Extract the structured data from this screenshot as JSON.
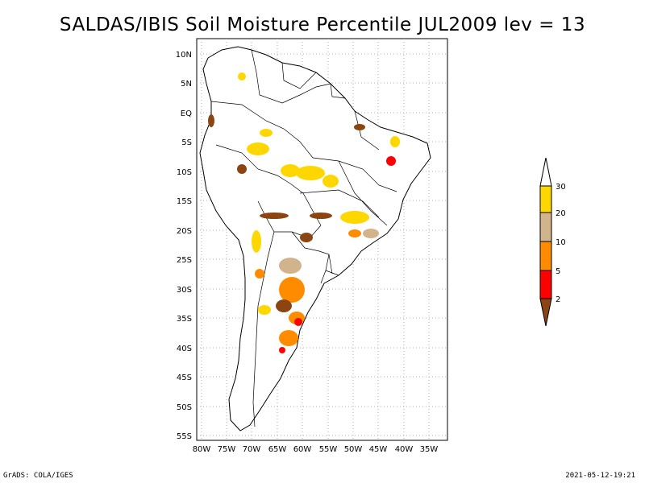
{
  "title": "SALDAS/IBIS Soil Moisture Percentile JUL2009 lev = 13",
  "footer_left": "GrADS: COLA/IGES",
  "footer_right": "2021-05-12-19:21",
  "map": {
    "lon_range": [
      -81,
      -31
    ],
    "lat_range": [
      -56,
      12
    ],
    "lon_ticks": [
      "80W",
      "75W",
      "70W",
      "65W",
      "60W",
      "55W",
      "50W",
      "45W",
      "40W",
      "35W"
    ],
    "lat_ticks": [
      "10N",
      "5N",
      "EQ",
      "5S",
      "10S",
      "15S",
      "20S",
      "25S",
      "30S",
      "35S",
      "40S",
      "45S",
      "50S",
      "55S"
    ],
    "grid": true
  },
  "legend": {
    "labels": [
      "2",
      "5",
      "10",
      "20",
      "30"
    ],
    "colors": [
      "#8b4513",
      "#ff0000",
      "#ff8c00",
      "#d2b48c",
      "#ffd700",
      "#ffffff"
    ]
  }
}
